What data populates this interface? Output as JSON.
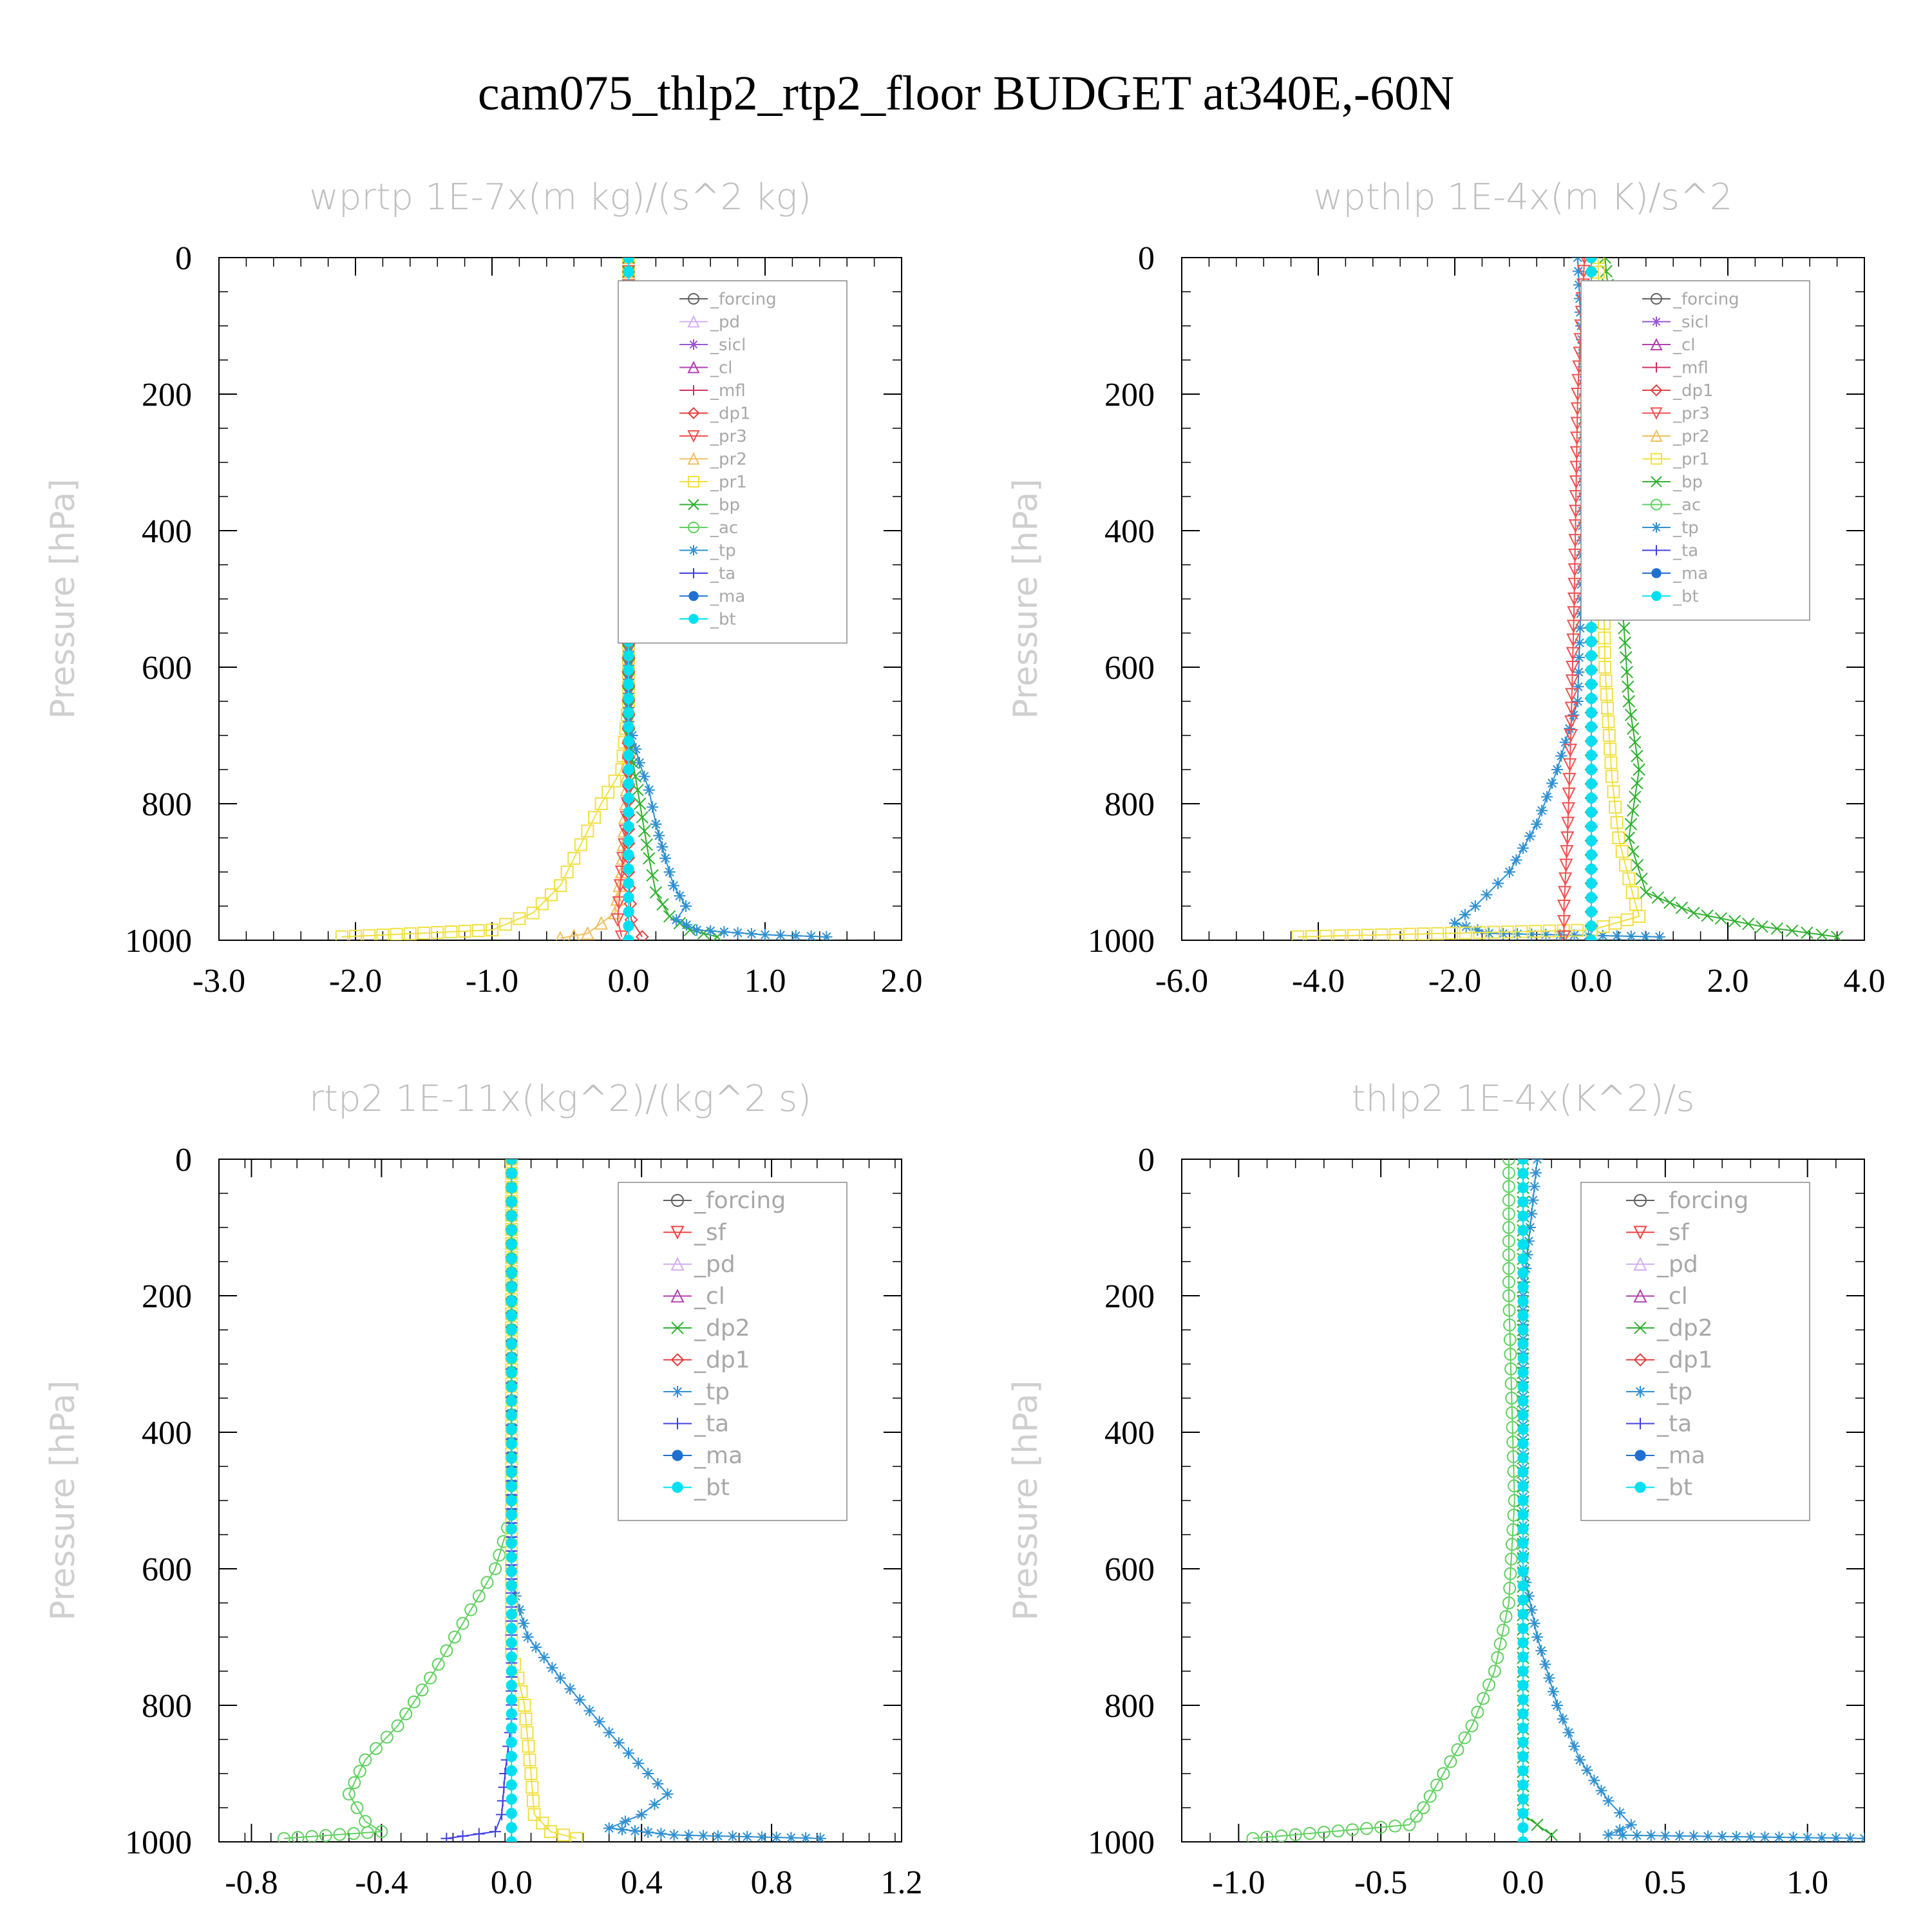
{
  "title": "cam075_thlp2_rtp2_floor  BUDGET at340E,-60N",
  "colors": {
    "forcing": "#606060",
    "pd": "#d4b0f0",
    "sicl": "#9a55d0",
    "cl": "#b040b0",
    "mfl": "#d03060",
    "dp1": "#e04040",
    "pr3": "#f05050",
    "pr2": "#f0c060",
    "pr1": "#f0e040",
    "bp": "#30b030",
    "ac": "#60d060",
    "tp": "#3090d0",
    "ta": "#4040e0",
    "ma": "#2070d0",
    "bt": "#00e0f0",
    "sf": "#f04040",
    "dp2": "#30b030"
  },
  "chart_data": [
    {
      "type": "line",
      "title": "wprtp  1E-7x(m kg)/(s^2 kg)",
      "xlabel": "",
      "ylabel": "Pressure [hPa]",
      "xlim": [
        -3.0,
        2.0
      ],
      "ylim": [
        0,
        1000
      ],
      "y_inverted": true,
      "xticks": [
        "-3.0",
        "-2.0",
        "-1.0",
        "0.0",
        "1.0",
        "2.0"
      ],
      "yticks": [
        "0",
        "200",
        "400",
        "600",
        "800",
        "1000"
      ],
      "legend": [
        "_forcing",
        "_pd",
        "_sicl",
        "_cl",
        "_mfl",
        "_dp1",
        "_pr3",
        "_pr2",
        "_pr1",
        "_bp",
        "_ac",
        "_tp",
        "_ta",
        "_ma",
        "_bt"
      ],
      "legend_position": "top-right",
      "series": [
        {
          "name": "_pr1",
          "key": "pr1",
          "marker": "square",
          "points": [
            [
              0,
              0
            ],
            [
              0,
              650
            ],
            [
              -0.05,
              750
            ],
            [
              -0.2,
              800
            ],
            [
              -0.35,
              860
            ],
            [
              -0.5,
              920
            ],
            [
              -0.7,
              960
            ],
            [
              -1.0,
              985
            ],
            [
              -2.1,
              995
            ]
          ]
        },
        {
          "name": "_pr2",
          "key": "pr2",
          "marker": "triangle",
          "points": [
            [
              0,
              0
            ],
            [
              0,
              700
            ],
            [
              -0.02,
              800
            ],
            [
              -0.05,
              900
            ],
            [
              -0.1,
              960
            ],
            [
              -0.3,
              990
            ],
            [
              -0.5,
              997
            ]
          ]
        },
        {
          "name": "_pr3",
          "key": "pr3",
          "marker": "triangle-down",
          "points": [
            [
              0,
              0
            ],
            [
              0,
              780
            ],
            [
              -0.03,
              860
            ],
            [
              -0.06,
              920
            ],
            [
              -0.08,
              970
            ],
            [
              -0.05,
              995
            ]
          ]
        },
        {
          "name": "_dp1",
          "key": "dp1",
          "marker": "diamond",
          "points": [
            [
              0,
              0
            ],
            [
              0,
              900
            ],
            [
              0.02,
              970
            ],
            [
              0.1,
              995
            ]
          ]
        },
        {
          "name": "_bp",
          "key": "bp",
          "marker": "x",
          "points": [
            [
              0,
              0
            ],
            [
              0,
              700
            ],
            [
              0.05,
              760
            ],
            [
              0.1,
              820
            ],
            [
              0.15,
              880
            ],
            [
              0.2,
              930
            ],
            [
              0.3,
              965
            ],
            [
              0.45,
              985
            ],
            [
              0.65,
              995
            ]
          ]
        },
        {
          "name": "_tp",
          "key": "tp",
          "marker": "asterisk",
          "points": [
            [
              0,
              0
            ],
            [
              0,
              680
            ],
            [
              0.08,
              740
            ],
            [
              0.15,
              780
            ],
            [
              0.2,
              830
            ],
            [
              0.27,
              880
            ],
            [
              0.33,
              920
            ],
            [
              0.42,
              950
            ],
            [
              0.35,
              970
            ],
            [
              0.5,
              985
            ],
            [
              1.0,
              992
            ],
            [
              1.45,
              995
            ]
          ]
        },
        {
          "name": "_bt",
          "key": "bt",
          "marker": "dot",
          "points": [
            [
              0,
              0
            ],
            [
              0,
              1000
            ]
          ]
        }
      ]
    },
    {
      "type": "line",
      "title": "wpthlp  1E-4x(m K)/s^2",
      "xlabel": "",
      "ylabel": "Pressure [hPa]",
      "xlim": [
        -6.0,
        4.0
      ],
      "ylim": [
        0,
        1000
      ],
      "y_inverted": true,
      "xticks": [
        "-6.0",
        "-4.0",
        "-2.0",
        "0.0",
        "2.0",
        "4.0"
      ],
      "yticks": [
        "0",
        "200",
        "400",
        "600",
        "800",
        "1000"
      ],
      "legend": [
        "_forcing",
        "_sicl",
        "_cl",
        "_mfl",
        "_dp1",
        "_pr3",
        "_pr2",
        "_pr1",
        "_bp",
        "_ac",
        "_tp",
        "_ta",
        "_ma",
        "_bt"
      ],
      "legend_position": "top-right",
      "series": [
        {
          "name": "_bp",
          "key": "bp",
          "marker": "x",
          "points": [
            [
              0.2,
              0
            ],
            [
              0.3,
              100
            ],
            [
              0.35,
              300
            ],
            [
              0.45,
              500
            ],
            [
              0.55,
              650
            ],
            [
              0.7,
              750
            ],
            [
              0.55,
              850
            ],
            [
              0.8,
              930
            ],
            [
              1.5,
              960
            ],
            [
              2.5,
              980
            ],
            [
              3.6,
              995
            ]
          ]
        },
        {
          "name": "_tp",
          "key": "tp",
          "marker": "asterisk",
          "points": [
            [
              -0.2,
              0
            ],
            [
              -0.1,
              200
            ],
            [
              -0.15,
              500
            ],
            [
              -0.2,
              650
            ],
            [
              -0.5,
              750
            ],
            [
              -0.8,
              830
            ],
            [
              -1.2,
              900
            ],
            [
              -1.7,
              950
            ],
            [
              -2.0,
              975
            ],
            [
              -1.5,
              990
            ],
            [
              1.0,
              995
            ]
          ]
        },
        {
          "name": "_pr1",
          "key": "pr1",
          "marker": "square",
          "points": [
            [
              0.1,
              0
            ],
            [
              0.15,
              300
            ],
            [
              0.2,
              600
            ],
            [
              0.3,
              760
            ],
            [
              0.4,
              850
            ],
            [
              0.6,
              930
            ],
            [
              0.7,
              965
            ],
            [
              0,
              985
            ],
            [
              -4.3,
              995
            ]
          ]
        },
        {
          "name": "_pr3",
          "key": "pr3",
          "marker": "triangle-down",
          "points": [
            [
              -0.1,
              0
            ],
            [
              -0.2,
              200
            ],
            [
              -0.25,
              500
            ],
            [
              -0.3,
              700
            ],
            [
              -0.35,
              850
            ],
            [
              -0.4,
              950
            ],
            [
              -0.4,
              995
            ]
          ]
        },
        {
          "name": "_dp1",
          "key": "dp1",
          "marker": "diamond",
          "points": [
            [
              0,
              0
            ],
            [
              0,
              1000
            ]
          ]
        },
        {
          "name": "_bt",
          "key": "bt",
          "marker": "dot",
          "points": [
            [
              0,
              0
            ],
            [
              0,
              1000
            ]
          ]
        }
      ]
    },
    {
      "type": "line",
      "title": "rtp2  1E-11x(kg^2)/(kg^2 s)",
      "xlabel": "",
      "ylabel": "Pressure [hPa]",
      "xlim": [
        -0.9,
        1.2
      ],
      "ylim": [
        0,
        1000
      ],
      "y_inverted": true,
      "xticks": [
        "-0.8",
        "-0.4",
        "0.0",
        "0.4",
        "0.8",
        "1.2"
      ],
      "yticks": [
        "0",
        "200",
        "400",
        "600",
        "800",
        "1000"
      ],
      "legend": [
        "_forcing",
        "_sf",
        "_pd",
        "_cl",
        "_dp2",
        "_dp1",
        "_tp",
        "_ta",
        "_ma",
        "_bt"
      ],
      "legend_position": "top-right",
      "series": [
        {
          "name": "_dp1",
          "key": "ac",
          "marker": "circle",
          "points": [
            [
              0,
              0
            ],
            [
              0,
              520
            ],
            [
              -0.05,
              600
            ],
            [
              -0.15,
              680
            ],
            [
              -0.25,
              760
            ],
            [
              -0.35,
              830
            ],
            [
              -0.45,
              880
            ],
            [
              -0.5,
              930
            ],
            [
              -0.45,
              970
            ],
            [
              -0.4,
              985
            ],
            [
              -0.7,
              995
            ]
          ]
        },
        {
          "name": "_tp",
          "key": "tp",
          "marker": "asterisk",
          "points": [
            [
              0,
              0
            ],
            [
              0,
              620
            ],
            [
              0.05,
              700
            ],
            [
              0.15,
              760
            ],
            [
              0.3,
              840
            ],
            [
              0.42,
              900
            ],
            [
              0.48,
              930
            ],
            [
              0.4,
              960
            ],
            [
              0.3,
              980
            ],
            [
              0.5,
              990
            ],
            [
              0.95,
              995
            ]
          ]
        },
        {
          "name": "_cl",
          "key": "pr1",
          "marker": "square",
          "points": [
            [
              0,
              0
            ],
            [
              0,
              720
            ],
            [
              0.04,
              800
            ],
            [
              0.06,
              900
            ],
            [
              0.07,
              960
            ],
            [
              0.12,
              985
            ],
            [
              0.2,
              995
            ]
          ]
        },
        {
          "name": "_ta",
          "key": "ta",
          "marker": "plus",
          "points": [
            [
              0,
              0
            ],
            [
              0,
              820
            ],
            [
              -0.02,
              900
            ],
            [
              -0.03,
              960
            ],
            [
              -0.05,
              985
            ],
            [
              -0.2,
              995
            ]
          ]
        },
        {
          "name": "_bt",
          "key": "bt",
          "marker": "dot",
          "points": [
            [
              0,
              0
            ],
            [
              0,
              1000
            ]
          ]
        }
      ]
    },
    {
      "type": "line",
      "title": "thlp2  1E-4x(K^2)/s",
      "xlabel": "",
      "ylabel": "Pressure [hPa]",
      "xlim": [
        -1.2,
        1.2
      ],
      "ylim": [
        0,
        1000
      ],
      "y_inverted": true,
      "xticks": [
        "-1.0",
        "-0.5",
        "0.0",
        "0.5",
        "1.0"
      ],
      "yticks": [
        "0",
        "200",
        "400",
        "600",
        "800",
        "1000"
      ],
      "legend": [
        "_forcing",
        "_sf",
        "_pd",
        "_cl",
        "_dp2",
        "_dp1",
        "_tp",
        "_ta",
        "_ma",
        "_bt"
      ],
      "legend_position": "top-right",
      "series": [
        {
          "name": "_dp1",
          "key": "ac",
          "marker": "circle",
          "points": [
            [
              -0.05,
              0
            ],
            [
              -0.05,
              200
            ],
            [
              -0.03,
              500
            ],
            [
              -0.05,
              650
            ],
            [
              -0.1,
              750
            ],
            [
              -0.18,
              830
            ],
            [
              -0.28,
              900
            ],
            [
              -0.35,
              950
            ],
            [
              -0.4,
              975
            ],
            [
              -0.95,
              995
            ]
          ]
        },
        {
          "name": "_tp",
          "key": "tp",
          "marker": "asterisk",
          "points": [
            [
              0.05,
              0
            ],
            [
              0,
              200
            ],
            [
              0,
              600
            ],
            [
              0.05,
              700
            ],
            [
              0.12,
              800
            ],
            [
              0.2,
              880
            ],
            [
              0.3,
              940
            ],
            [
              0.38,
              975
            ],
            [
              0.3,
              990
            ],
            [
              1.2,
              995
            ]
          ]
        },
        {
          "name": "_dp2",
          "key": "dp2",
          "marker": "x",
          "points": [
            [
              0,
              0
            ],
            [
              0,
              960
            ],
            [
              0.1,
              990
            ]
          ]
        },
        {
          "name": "_bt",
          "key": "bt",
          "marker": "dot",
          "points": [
            [
              0,
              0
            ],
            [
              0,
              1000
            ]
          ]
        }
      ]
    }
  ]
}
